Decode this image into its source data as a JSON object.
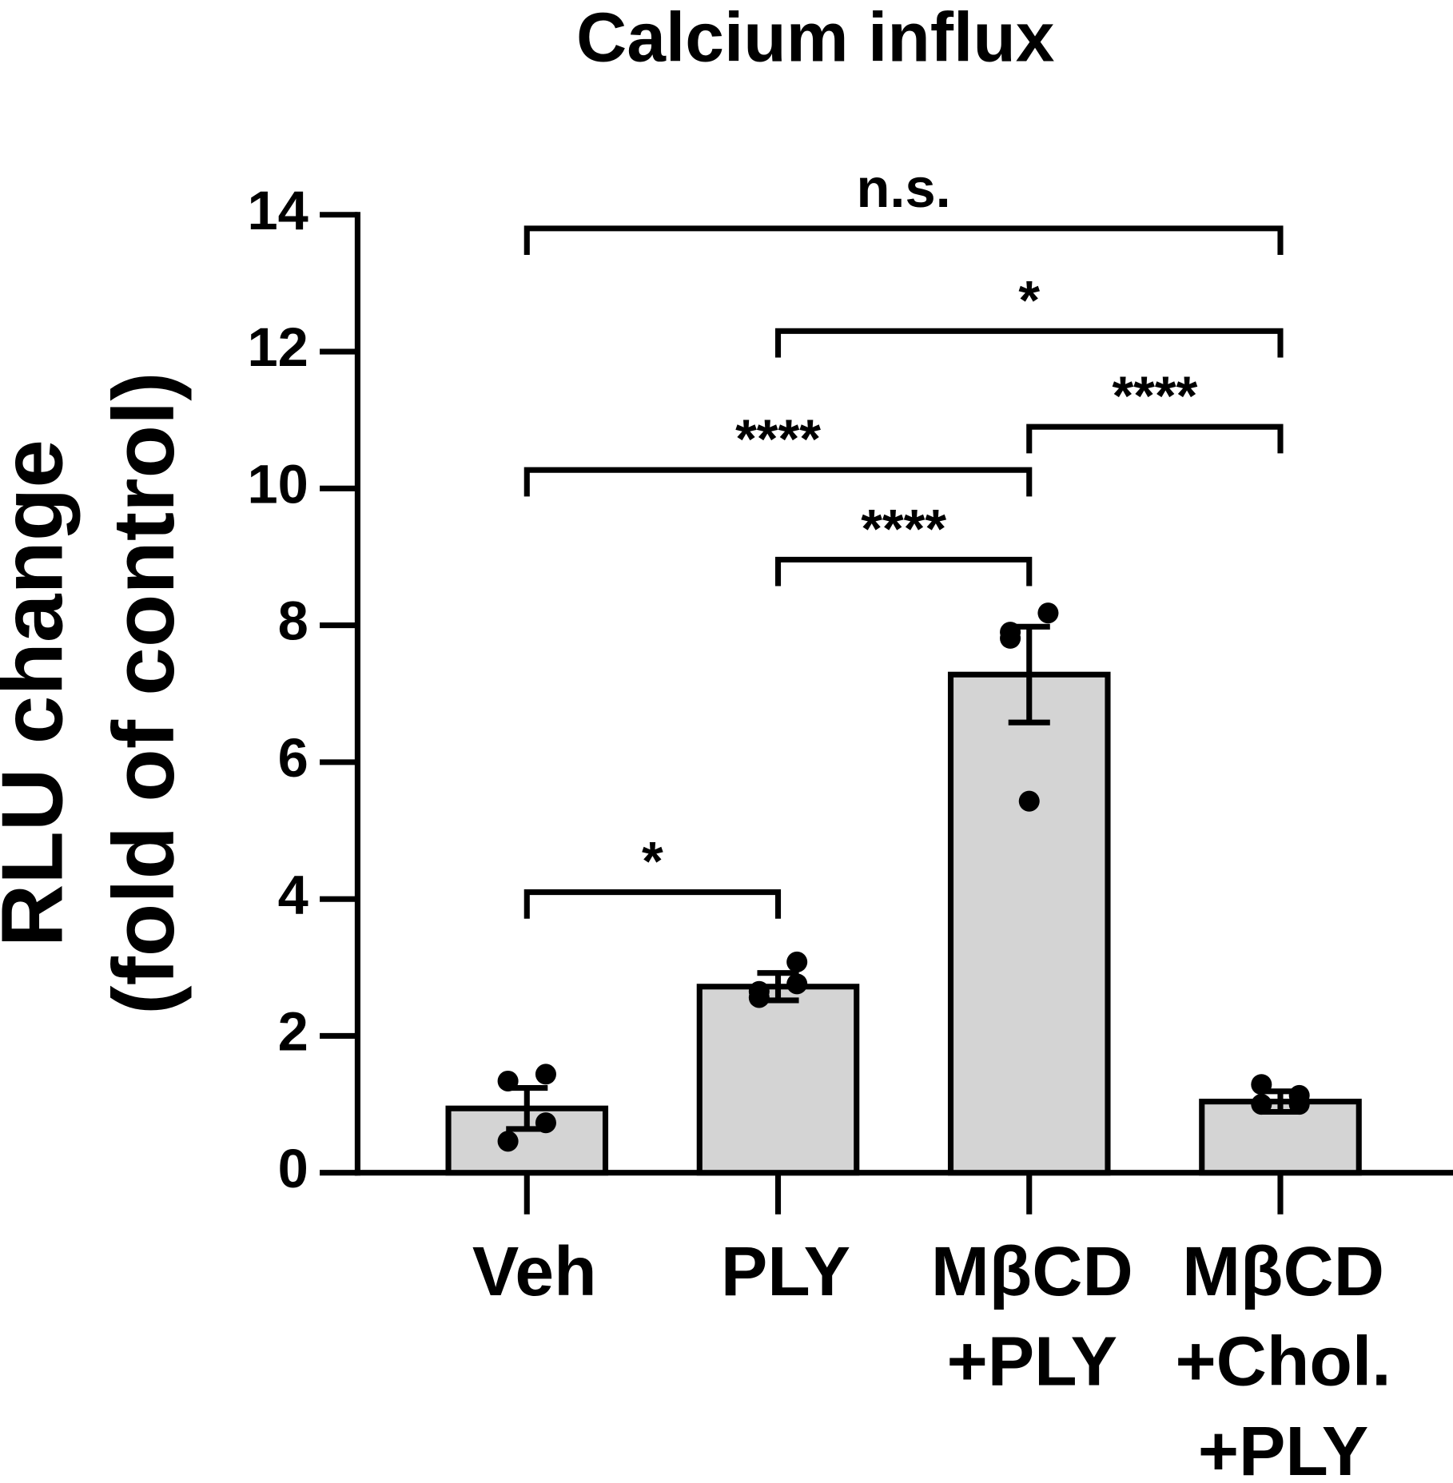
{
  "chart_data": {
    "type": "bar",
    "title": "Calcium influx",
    "y_label": [
      "RLU change",
      "(fold of control)"
    ],
    "categories": [
      [
        "Veh"
      ],
      [
        "PLY"
      ],
      [
        "MβCD",
        "+PLY"
      ],
      [
        "MβCD",
        "+Chol.",
        "+PLY"
      ]
    ],
    "values": [
      0.94,
      2.72,
      7.28,
      1.04
    ],
    "errors": [
      0.3,
      0.2,
      0.7,
      0.15
    ],
    "points": [
      [
        1.34,
        1.44,
        0.46,
        0.73
      ],
      [
        2.56,
        3.08,
        2.65,
        2.76
      ],
      [
        7.9,
        8.18,
        7.81,
        5.43
      ],
      [
        1.0,
        1.13,
        1.29,
        1.0
      ]
    ],
    "color": "#d4d4d4",
    "ylim": [
      0,
      14
    ],
    "yticks": [
      0,
      2,
      4,
      6,
      8,
      10,
      12,
      14
    ],
    "annotations": [
      {
        "from": 0,
        "to": 1,
        "y": 4.1,
        "label": "*"
      },
      {
        "from": 1,
        "to": 2,
        "y": 8.96,
        "label": "****"
      },
      {
        "from": 0,
        "to": 2,
        "y": 10.27,
        "label": "****"
      },
      {
        "from": 2,
        "to": 3,
        "y": 10.9,
        "label": "****"
      },
      {
        "from": 1,
        "to": 3,
        "y": 12.3,
        "label": "*"
      },
      {
        "from": 0,
        "to": 3,
        "y": 13.8,
        "label": "n.s."
      }
    ]
  }
}
